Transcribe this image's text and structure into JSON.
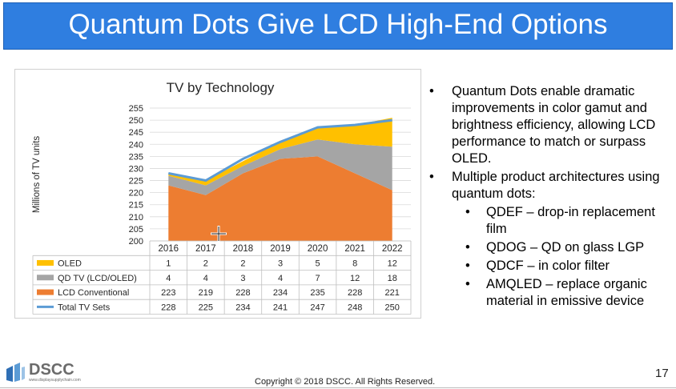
{
  "slide": {
    "title": "Quantum Dots Give LCD High-End Options",
    "page_number": "17",
    "copyright": "Copyright © 2018 DSCC. All Rights Reserved.",
    "logo_text": "DSCC",
    "logo_subtext": "www.displaysupplychain.com",
    "colors": {
      "title_bg": "#2f7ee0",
      "oled": "#ffc000",
      "qd": "#a5a5a5",
      "lcd": "#ed7d31",
      "total": "#5b9bd5"
    }
  },
  "bullets": [
    {
      "text": "Quantum Dots enable dramatic improvements in color gamut and brightness efficiency, allowing LCD performance to match or surpass OLED.",
      "sub": []
    },
    {
      "text": "Multiple product architectures using quantum dots:",
      "sub": [
        "QDEF – drop-in replacement film",
        "QDOG – QD on glass LGP",
        "QDCF – in color filter",
        "AMQLED – replace organic material in emissive device"
      ]
    }
  ],
  "chart_data": {
    "type": "area",
    "title": "TV by Technology",
    "ylabel": "Millions of TV units",
    "ylim": [
      200,
      255
    ],
    "yticks": [
      200,
      205,
      210,
      215,
      220,
      225,
      230,
      235,
      240,
      245,
      250,
      255
    ],
    "categories": [
      "2016",
      "2017",
      "2018",
      "2019",
      "2020",
      "2021",
      "2022"
    ],
    "series": [
      {
        "name": "OLED",
        "values": [
          1,
          2,
          2,
          3,
          5,
          8,
          12
        ],
        "color": "#ffc000",
        "kind": "stacked-area"
      },
      {
        "name": "QD TV (LCD/OLED)",
        "values": [
          4,
          4,
          3,
          4,
          7,
          12,
          18
        ],
        "color": "#a5a5a5",
        "kind": "stacked-area"
      },
      {
        "name": "LCD Conventional",
        "values": [
          223,
          219,
          228,
          234,
          235,
          228,
          221
        ],
        "color": "#ed7d31",
        "kind": "stacked-area"
      },
      {
        "name": "Total TV Sets",
        "values": [
          228,
          225,
          234,
          241,
          247,
          248,
          250
        ],
        "color": "#5b9bd5",
        "kind": "line"
      }
    ],
    "grid": true,
    "legend": "data-table"
  }
}
